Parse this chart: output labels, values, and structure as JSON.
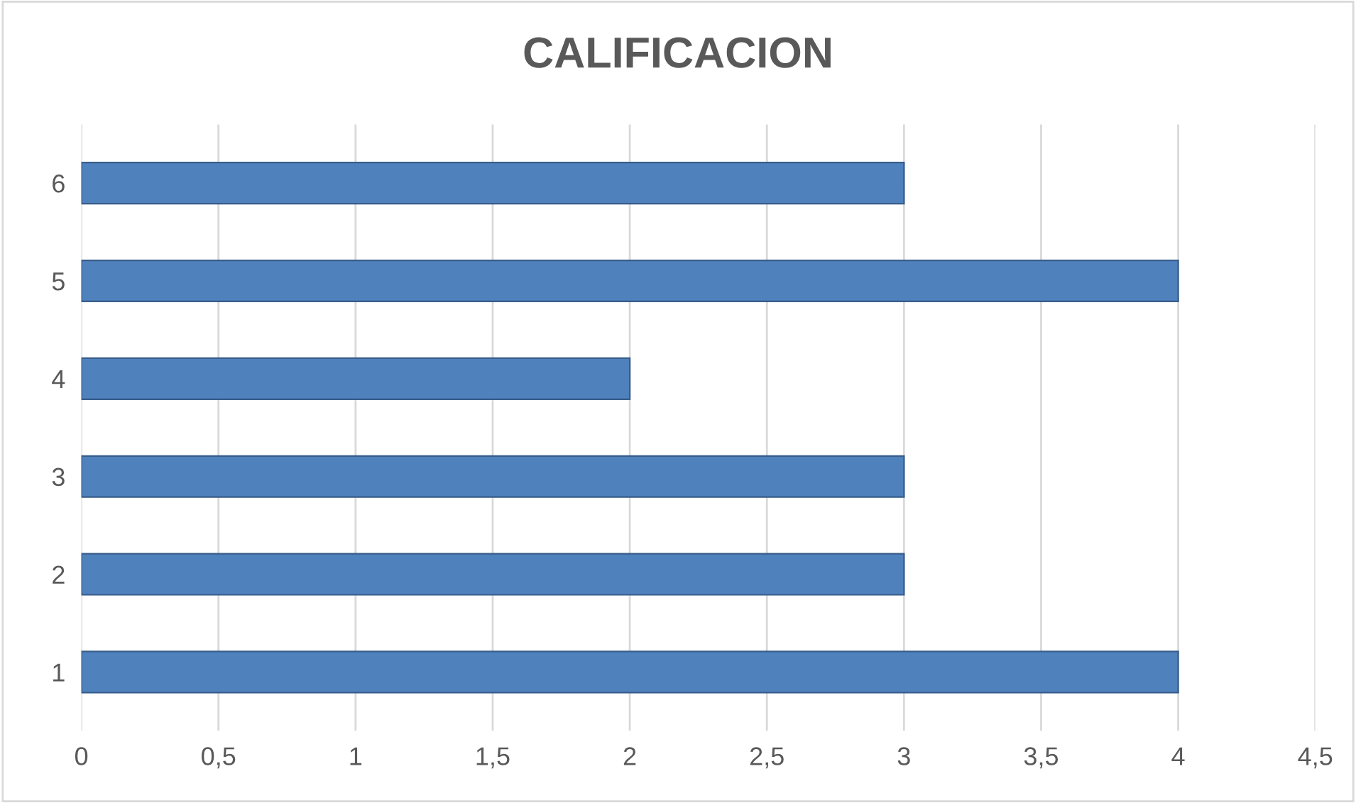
{
  "chart_data": {
    "type": "bar",
    "orientation": "horizontal",
    "title": "CALIFICACION",
    "categories": [
      "6",
      "5",
      "4",
      "3",
      "2",
      "1"
    ],
    "values": [
      3,
      4,
      2,
      3,
      3,
      4
    ],
    "color": "#4f81bd",
    "xlim": [
      0,
      4.5
    ],
    "xticks": [
      0,
      {
        "value": 0.5,
        "label": "0,5"
      },
      1,
      {
        "value": 1.5,
        "label": "1,5"
      },
      2,
      {
        "value": 2.5,
        "label": "2,5"
      },
      3,
      {
        "value": 3.5,
        "label": "3,5"
      },
      4,
      {
        "value": 4.5,
        "label": "4,5"
      }
    ],
    "grid": "x"
  }
}
